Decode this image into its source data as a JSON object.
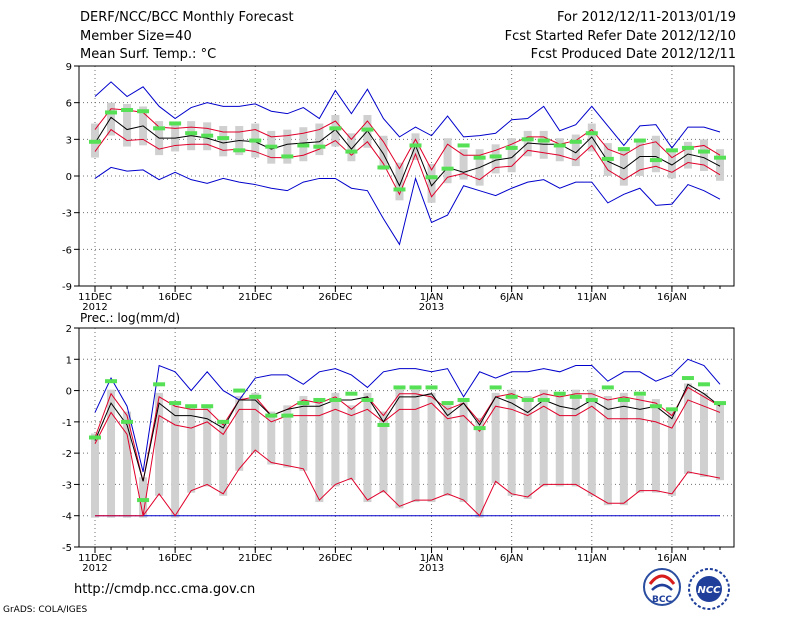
{
  "header": {
    "title": "DERF/NCC/BCC Monthly Forecast",
    "member": "Member Size=40",
    "variable": "Mean Surf. Temp.: °C",
    "forecast_range": "For 2012/12/11-2013/01/19",
    "refer_date": "Fcst Started Refer Date 2012/12/10",
    "produced_date": "Fcst Produced Date 2012/12/11"
  },
  "footer": {
    "url": "http://cmdp.ncc.cma.gov.cn",
    "credit": "GrADS: COLA/IGES"
  },
  "logos": {
    "bcc": "BCC",
    "ncc": "NCC"
  },
  "colors": {
    "box": "#d0d0d0",
    "median": "#55e055",
    "mean": "#000000",
    "inner": "#e0002a",
    "outer": "#0000cc",
    "grid": "#707070"
  },
  "chart_data": [
    {
      "type": "line",
      "title": "",
      "ylabel": "Mean Surf. Temp.: °C",
      "ylim": [
        -9,
        9
      ],
      "yticks": [
        "9",
        "6",
        "3",
        "0",
        "-3",
        "-6",
        "-9"
      ],
      "yticks_values": [
        9,
        6,
        3,
        0,
        -3,
        -6,
        -9
      ],
      "xtick_labels": [
        "11DEC",
        "16DEC",
        "21DEC",
        "26DEC",
        "1JAN",
        "6JAN",
        "11JAN",
        "16JAN"
      ],
      "xtick_days": [
        1,
        6,
        11,
        16,
        22,
        27,
        32,
        37
      ],
      "xsub_labels": [
        {
          "day": 1,
          "text": "2012"
        },
        {
          "day": 22,
          "text": "2013"
        }
      ],
      "days": 40,
      "series": [
        {
          "name": "max",
          "values": [
            6.5,
            7.7,
            6.5,
            7.3,
            5.7,
            4.7,
            5.6,
            6.0,
            5.7,
            5.7,
            5.9,
            5.3,
            5.1,
            5.6,
            4.7,
            7.0,
            5.1,
            7.1,
            4.7,
            3.2,
            4.0,
            3.3,
            4.9,
            3.2,
            3.3,
            3.5,
            4.6,
            4.7,
            5.7,
            3.7,
            4.2,
            5.7,
            4.1,
            2.5,
            4.1,
            4.2,
            2.3,
            4.0,
            4.0,
            3.6
          ]
        },
        {
          "name": "upper",
          "values": [
            3.8,
            5.5,
            5.4,
            5.2,
            4.0,
            3.9,
            4.0,
            3.9,
            3.6,
            3.6,
            3.8,
            3.2,
            3.3,
            3.5,
            3.8,
            4.5,
            3.0,
            4.5,
            2.8,
            0.6,
            3.0,
            0.5,
            2.6,
            1.7,
            1.7,
            2.1,
            2.6,
            3.2,
            3.2,
            2.6,
            2.9,
            3.8,
            2.2,
            1.7,
            2.5,
            2.8,
            1.5,
            2.3,
            2.5,
            1.7
          ]
        },
        {
          "name": "mean",
          "values": [
            2.7,
            4.8,
            3.8,
            4.1,
            3.1,
            3.1,
            3.3,
            3.1,
            2.7,
            2.9,
            2.8,
            2.2,
            2.6,
            2.7,
            2.8,
            3.8,
            2.2,
            3.7,
            1.8,
            -0.8,
            2.5,
            -0.8,
            0.7,
            0.3,
            0.7,
            1.3,
            1.5,
            2.7,
            2.6,
            2.6,
            1.9,
            3.2,
            1.2,
            0.6,
            1.6,
            1.6,
            0.9,
            1.8,
            1.5,
            0.8
          ]
        },
        {
          "name": "lower",
          "values": [
            2.0,
            3.8,
            2.9,
            3.0,
            2.2,
            2.5,
            2.6,
            2.6,
            2.1,
            2.2,
            2.0,
            1.5,
            1.5,
            1.7,
            2.2,
            2.9,
            1.7,
            2.8,
            1.0,
            -1.5,
            1.8,
            -1.7,
            -0.1,
            0.2,
            -0.3,
            0.7,
            0.8,
            2.1,
            1.9,
            1.7,
            1.3,
            2.5,
            0.5,
            -0.3,
            0.5,
            0.8,
            0.3,
            1.1,
            0.9,
            0.1
          ]
        },
        {
          "name": "min",
          "values": [
            -0.2,
            0.7,
            0.4,
            0.5,
            -0.3,
            0.3,
            -0.3,
            -0.6,
            -0.2,
            -0.5,
            -0.7,
            -1.0,
            -1.2,
            -0.5,
            -0.2,
            -0.2,
            -1.0,
            -1.2,
            -3.5,
            -5.6,
            -0.2,
            -3.8,
            -3.2,
            -0.8,
            -1.2,
            -1.6,
            -1.0,
            -0.5,
            -0.3,
            -1.0,
            -0.5,
            -0.5,
            -2.2,
            -1.5,
            -1.0,
            -2.4,
            -2.3,
            -0.7,
            -1.2,
            -1.9
          ]
        },
        {
          "name": "median",
          "values": [
            2.8,
            5.2,
            5.4,
            5.3,
            3.9,
            4.3,
            3.5,
            3.3,
            3.1,
            2.1,
            2.9,
            2.4,
            1.6,
            2.5,
            2.4,
            3.9,
            2.0,
            3.8,
            0.7,
            -1.1,
            2.5,
            -0.1,
            0.6,
            2.5,
            1.5,
            1.6,
            2.3,
            3.0,
            2.9,
            2.5,
            2.8,
            3.5,
            1.4,
            2.2,
            2.9,
            1.3,
            2.1,
            2.3,
            2.0,
            1.5
          ]
        }
      ]
    },
    {
      "type": "line",
      "title": "",
      "ylabel": "Prec.: log(mm/d)",
      "ylim": [
        -5,
        2
      ],
      "yticks": [
        "2",
        "1",
        "0",
        "-1",
        "-2",
        "-3",
        "-4",
        "-5"
      ],
      "yticks_values": [
        2,
        1,
        0,
        -1,
        -2,
        -3,
        -4,
        -5
      ],
      "xtick_labels": [
        "11DEC",
        "16DEC",
        "21DEC",
        "26DEC",
        "1JAN",
        "6JAN",
        "11JAN",
        "16JAN"
      ],
      "xtick_days": [
        1,
        6,
        11,
        16,
        22,
        27,
        32,
        37
      ],
      "xsub_labels": [
        {
          "day": 1,
          "text": "2012"
        },
        {
          "day": 22,
          "text": "2013"
        }
      ],
      "days": 40,
      "series": [
        {
          "name": "max",
          "values": [
            -0.7,
            0.4,
            -0.5,
            -2.6,
            0.8,
            0.6,
            0.0,
            0.6,
            0.0,
            -0.3,
            0.4,
            0.5,
            0.5,
            0.2,
            0.6,
            0.7,
            0.5,
            0.1,
            0.6,
            0.7,
            0.7,
            0.6,
            0.7,
            -0.2,
            0.6,
            0.4,
            0.6,
            0.6,
            0.7,
            0.6,
            0.8,
            0.8,
            0.3,
            0.6,
            0.6,
            0.3,
            0.5,
            1.0,
            0.8,
            0.2
          ]
        },
        {
          "name": "upper",
          "values": [
            -1.5,
            -0.1,
            -0.8,
            -2.9,
            -0.2,
            -0.5,
            -0.6,
            -0.6,
            -1.1,
            -0.3,
            -0.2,
            -0.8,
            -0.6,
            -0.3,
            -0.4,
            -0.2,
            -0.6,
            -0.2,
            -0.8,
            -0.1,
            -0.1,
            -0.2,
            -0.6,
            -0.4,
            -1.0,
            -0.2,
            -0.1,
            -0.3,
            -0.1,
            -0.2,
            -0.1,
            -0.1,
            -0.3,
            -0.2,
            -0.3,
            -0.4,
            -0.8,
            0.1,
            -0.2,
            -0.5
          ]
        },
        {
          "name": "mean",
          "values": [
            -1.6,
            -0.4,
            -1.1,
            -2.9,
            -0.4,
            -0.8,
            -0.8,
            -0.9,
            -1.2,
            -0.3,
            -0.3,
            -0.8,
            -0.6,
            -0.5,
            -0.5,
            -0.3,
            -0.3,
            -0.2,
            -1.0,
            -0.2,
            -0.2,
            -0.1,
            -0.8,
            -0.4,
            -1.1,
            -0.2,
            -0.4,
            -0.7,
            -0.3,
            -0.5,
            -0.6,
            -0.3,
            -0.6,
            -0.5,
            -0.6,
            -0.5,
            -0.9,
            0.2,
            -0.1,
            -0.5
          ]
        },
        {
          "name": "lower",
          "values": [
            -1.7,
            -0.7,
            -1.4,
            -4.0,
            -0.8,
            -1.1,
            -1.2,
            -1.0,
            -1.4,
            -0.6,
            -0.6,
            -1.0,
            -0.8,
            -0.8,
            -0.8,
            -0.6,
            -0.8,
            -0.6,
            -1.0,
            -0.6,
            -0.6,
            -0.4,
            -0.9,
            -0.8,
            -1.3,
            -0.5,
            -0.6,
            -0.8,
            -0.5,
            -0.8,
            -0.8,
            -0.5,
            -0.9,
            -0.9,
            -0.9,
            -1.0,
            -1.2,
            -0.3,
            -0.5,
            -0.7
          ]
        },
        {
          "name": "min",
          "values": [
            -4,
            -4,
            -4,
            -4,
            -4,
            -4,
            -4,
            -4,
            -4,
            -4,
            -4,
            -4,
            -4,
            -4,
            -4,
            -4,
            -4,
            -4,
            -4,
            -4,
            -4,
            -4,
            -4,
            -4,
            -4,
            -4,
            -4,
            -4,
            -4,
            -4,
            -4,
            -4,
            -4,
            -4,
            -4,
            -4,
            -4,
            -4,
            -4,
            -4
          ]
        },
        {
          "name": "lower-extreme",
          "values": [
            -4.0,
            -4.0,
            -4.0,
            -4.0,
            -3.3,
            -4.0,
            -3.2,
            -3.0,
            -3.3,
            -2.5,
            -1.9,
            -2.3,
            -2.4,
            -2.5,
            -3.5,
            -3.0,
            -2.8,
            -3.5,
            -3.2,
            -3.7,
            -3.5,
            -3.5,
            -3.3,
            -3.5,
            -4.0,
            -2.9,
            -3.3,
            -3.4,
            -3.0,
            -3.0,
            -3.0,
            -3.3,
            -3.6,
            -3.6,
            -3.2,
            -3.2,
            -3.3,
            -2.6,
            -2.7,
            -2.8
          ]
        },
        {
          "name": "median",
          "values": [
            -1.5,
            0.3,
            -1.0,
            -3.5,
            0.2,
            -0.4,
            -0.5,
            -0.5,
            -1.0,
            0.0,
            -0.2,
            -0.8,
            -0.8,
            -0.4,
            -0.3,
            -0.3,
            -0.1,
            -0.3,
            -1.1,
            0.1,
            0.1,
            0.1,
            -0.4,
            -0.3,
            -1.2,
            0.1,
            -0.2,
            -0.3,
            -0.3,
            -0.1,
            -0.2,
            -0.3,
            0.1,
            -0.3,
            -0.1,
            -0.5,
            -0.6,
            0.4,
            0.2,
            -0.4
          ]
        }
      ]
    }
  ]
}
